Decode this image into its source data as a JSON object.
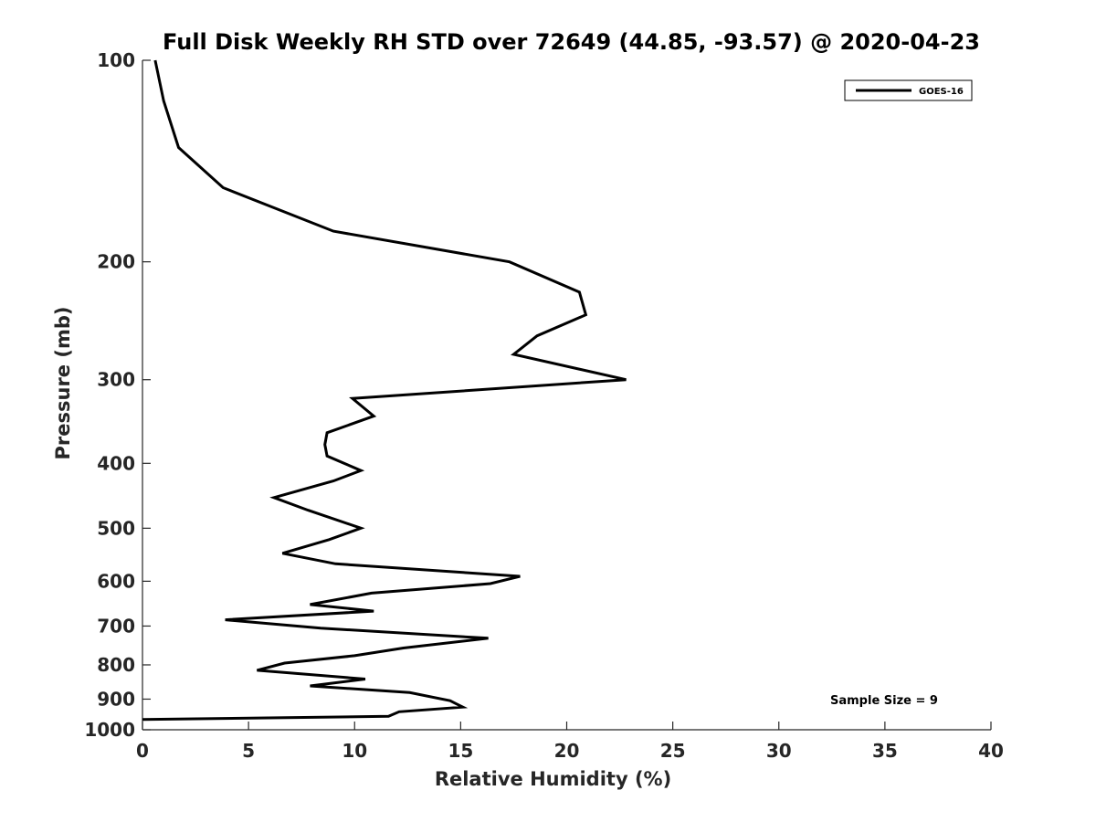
{
  "chart_data": {
    "type": "line",
    "title": "Full Disk Weekly RH STD over 72649 (44.85, -93.57) @ 2020-04-23",
    "xlabel": "Relative Humidity (%)",
    "ylabel": "Pressure (mb)",
    "xlim": [
      0,
      40
    ],
    "ylim": [
      100,
      1000
    ],
    "yscale": "log",
    "y_reversed": true,
    "x_ticks": [
      0,
      5,
      10,
      15,
      20,
      25,
      30,
      35,
      40
    ],
    "x_tick_labels": [
      "0",
      "5",
      "10",
      "15",
      "20",
      "25",
      "30",
      "35",
      "40"
    ],
    "y_ticks": [
      100,
      200,
      300,
      400,
      500,
      600,
      700,
      800,
      900,
      1000
    ],
    "y_tick_labels": [
      "100",
      "200",
      "300",
      "400",
      "500",
      "600",
      "700",
      "800",
      "900",
      "1000"
    ],
    "grid": false,
    "legend": {
      "position": "top-right",
      "entries": [
        "GOES-16"
      ]
    },
    "annotation": "Sample Size = 9",
    "series": [
      {
        "name": "GOES-16",
        "color": "#000000",
        "x": [
          0.6,
          1.0,
          1.7,
          3.8,
          9.0,
          17.3,
          20.6,
          20.9,
          18.6,
          17.5,
          22.8,
          9.9,
          10.9,
          8.7,
          8.6,
          8.7,
          10.3,
          9.0,
          6.2,
          7.8,
          10.3,
          8.8,
          6.6,
          9.1,
          17.8,
          16.4,
          10.8,
          7.9,
          10.9,
          3.9,
          8.4,
          16.3,
          12.3,
          10.0,
          6.7,
          5.4,
          10.5,
          7.9,
          12.6,
          14.5,
          14.8,
          15.1,
          12.1,
          11.6,
          0.0
        ],
        "y": [
          100,
          115,
          135,
          155,
          180,
          200,
          222,
          240,
          258,
          275,
          300,
          320,
          340,
          360,
          375,
          390,
          410,
          425,
          450,
          470,
          500,
          520,
          545,
          565,
          590,
          605,
          625,
          650,
          665,
          685,
          705,
          730,
          755,
          775,
          795,
          815,
          840,
          860,
          880,
          905,
          915,
          925,
          940,
          955,
          965
        ]
      }
    ]
  }
}
